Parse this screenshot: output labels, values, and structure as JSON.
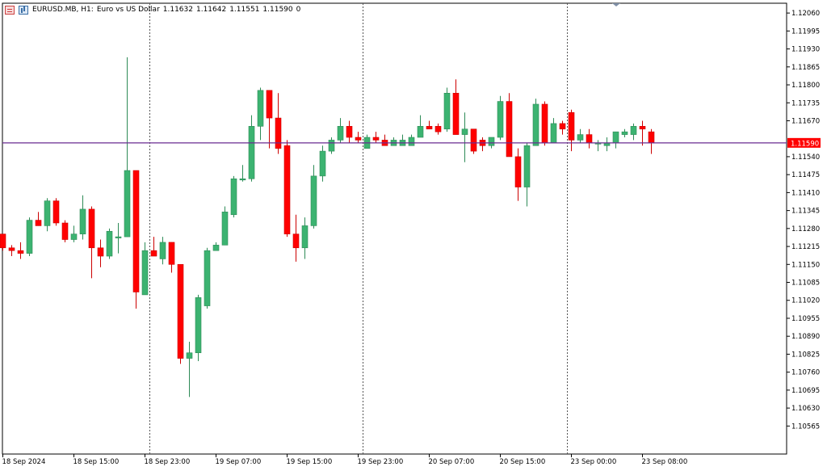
{
  "header": {
    "symbol": "EURUSD.MB, H1:",
    "description": "Euro vs US Dollar",
    "open": "1.11632",
    "high": "1.11642",
    "low": "1.11551",
    "close": "1.11590",
    "volume": "0"
  },
  "colors": {
    "background": "#ffffff",
    "bull": "#3cb371",
    "bear": "#ff0000",
    "wick_bull": "#2e8b57",
    "wick_bear": "#cc0000",
    "price_line": "#6a2c91",
    "price_label_bg": "#ff0000",
    "price_label_text": "#ffffff",
    "axis_text": "#000000"
  },
  "chart_data": {
    "type": "candlestick",
    "timeframe": "H1",
    "current_price": 1.1159,
    "current_price_label": "1.11590",
    "ylim": [
      1.10525,
      1.12075
    ],
    "y_ticks": [
      "1.12060",
      "1.11995",
      "1.11930",
      "1.11865",
      "1.11800",
      "1.11735",
      "1.11670",
      "1.11605",
      "1.11540",
      "1.11475",
      "1.11410",
      "1.11345",
      "1.11280",
      "1.11215",
      "1.11150",
      "1.11085",
      "1.11020",
      "1.10955",
      "1.10890",
      "1.10825",
      "1.10760",
      "1.10695",
      "1.10630",
      "1.10565"
    ],
    "x_ticks": [
      {
        "index": 0,
        "label": "18 Sep 2024"
      },
      {
        "index": 8,
        "label": "18 Sep 15:00"
      },
      {
        "index": 16,
        "label": "18 Sep 23:00"
      },
      {
        "index": 24,
        "label": "19 Sep 07:00"
      },
      {
        "index": 32,
        "label": "19 Sep 15:00"
      },
      {
        "index": 40,
        "label": "19 Sep 23:00"
      },
      {
        "index": 48,
        "label": "20 Sep 07:00"
      },
      {
        "index": 56,
        "label": "20 Sep 15:00"
      },
      {
        "index": 64,
        "label": "23 Sep 00:00"
      },
      {
        "index": 72,
        "label": "23 Sep 08:00"
      }
    ],
    "separators": [
      16.5,
      40.5,
      63.5
    ],
    "candles": [
      [
        1.1126,
        1.1126,
        1.112,
        1.1121
      ],
      [
        1.1121,
        1.1122,
        1.1118,
        1.112
      ],
      [
        1.112,
        1.1123,
        1.1117,
        1.1119
      ],
      [
        1.1119,
        1.1132,
        1.1118,
        1.1131
      ],
      [
        1.1131,
        1.1134,
        1.1129,
        1.1129
      ],
      [
        1.1129,
        1.1139,
        1.1127,
        1.1138
      ],
      [
        1.1138,
        1.1139,
        1.1129,
        1.113
      ],
      [
        1.113,
        1.1131,
        1.1123,
        1.1124
      ],
      [
        1.1124,
        1.1129,
        1.1123,
        1.1126
      ],
      [
        1.1126,
        1.114,
        1.1124,
        1.1135
      ],
      [
        1.1135,
        1.1136,
        1.111,
        1.1121
      ],
      [
        1.1121,
        1.1124,
        1.1114,
        1.1118
      ],
      [
        1.1118,
        1.1128,
        1.1117,
        1.1127
      ],
      [
        1.1125,
        1.113,
        1.1119,
        1.1125
      ],
      [
        1.1125,
        1.119,
        1.1125,
        1.1149
      ],
      [
        1.1149,
        1.1149,
        1.1099,
        1.1105
      ],
      [
        1.1104,
        1.1123,
        1.1104,
        1.112
      ],
      [
        1.112,
        1.1125,
        1.1118,
        1.1118
      ],
      [
        1.1117,
        1.1125,
        1.1115,
        1.1123
      ],
      [
        1.1123,
        1.1123,
        1.1112,
        1.1115
      ],
      [
        1.1115,
        1.1115,
        1.1079,
        1.1081
      ],
      [
        1.1081,
        1.1087,
        1.1067,
        1.1083
      ],
      [
        1.1083,
        1.1104,
        1.108,
        1.1103
      ],
      [
        1.11,
        1.1121,
        1.1099,
        1.112
      ],
      [
        1.112,
        1.1123,
        1.112,
        1.1122
      ],
      [
        1.1122,
        1.1136,
        1.1122,
        1.1134
      ],
      [
        1.1133,
        1.1147,
        1.1132,
        1.1146
      ],
      [
        1.1146,
        1.1151,
        1.1145,
        1.1146
      ],
      [
        1.1146,
        1.1169,
        1.1145,
        1.1165
      ],
      [
        1.1165,
        1.1179,
        1.116,
        1.1178
      ],
      [
        1.1178,
        1.1178,
        1.1157,
        1.1168
      ],
      [
        1.1168,
        1.1177,
        1.1155,
        1.1157
      ],
      [
        1.1158,
        1.116,
        1.1125,
        1.1126
      ],
      [
        1.1126,
        1.1133,
        1.1116,
        1.1121
      ],
      [
        1.1121,
        1.1132,
        1.1117,
        1.1129
      ],
      [
        1.1129,
        1.1151,
        1.1128,
        1.1147
      ],
      [
        1.1147,
        1.1158,
        1.1145,
        1.1156
      ],
      [
        1.1156,
        1.1161,
        1.1155,
        1.116
      ],
      [
        1.116,
        1.1168,
        1.1159,
        1.1165
      ],
      [
        1.1165,
        1.1167,
        1.1159,
        1.1161
      ],
      [
        1.1161,
        1.1163,
        1.1159,
        1.116
      ],
      [
        1.1157,
        1.1162,
        1.1157,
        1.1161
      ],
      [
        1.1161,
        1.1163,
        1.1159,
        1.116
      ],
      [
        1.116,
        1.1162,
        1.1158,
        1.1158
      ],
      [
        1.1158,
        1.1161,
        1.1158,
        1.116
      ],
      [
        1.1158,
        1.1162,
        1.1158,
        1.116
      ],
      [
        1.1158,
        1.1162,
        1.1158,
        1.1161
      ],
      [
        1.1161,
        1.1169,
        1.1161,
        1.1165
      ],
      [
        1.1165,
        1.1167,
        1.1164,
        1.1164
      ],
      [
        1.1165,
        1.1166,
        1.1162,
        1.1163
      ],
      [
        1.1164,
        1.1179,
        1.1163,
        1.1177
      ],
      [
        1.1177,
        1.1182,
        1.1162,
        1.1162
      ],
      [
        1.1162,
        1.117,
        1.1152,
        1.1164
      ],
      [
        1.1164,
        1.1164,
        1.1155,
        1.1156
      ],
      [
        1.116,
        1.1161,
        1.1156,
        1.1158
      ],
      [
        1.1158,
        1.1161,
        1.1157,
        1.1161
      ],
      [
        1.1161,
        1.1176,
        1.116,
        1.1174
      ],
      [
        1.1174,
        1.1177,
        1.1154,
        1.1154
      ],
      [
        1.1154,
        1.1157,
        1.1138,
        1.1143
      ],
      [
        1.1143,
        1.1159,
        1.1136,
        1.1158
      ],
      [
        1.1158,
        1.1175,
        1.1158,
        1.1173
      ],
      [
        1.1173,
        1.1174,
        1.1158,
        1.1159
      ],
      [
        1.1159,
        1.1168,
        1.1159,
        1.1166
      ],
      [
        1.1166,
        1.1167,
        1.1162,
        1.1164
      ],
      [
        1.117,
        1.1171,
        1.1156,
        1.116
      ],
      [
        1.116,
        1.1164,
        1.1159,
        1.1162
      ],
      [
        1.1162,
        1.1164,
        1.1157,
        1.1159
      ],
      [
        1.1159,
        1.116,
        1.1156,
        1.1159
      ],
      [
        1.1158,
        1.1161,
        1.1156,
        1.1159
      ],
      [
        1.1159,
        1.1163,
        1.1157,
        1.1163
      ],
      [
        1.1162,
        1.1164,
        1.1161,
        1.1163
      ],
      [
        1.1162,
        1.1166,
        1.116,
        1.1165
      ],
      [
        1.1165,
        1.1167,
        1.1158,
        1.1164
      ],
      [
        1.1163,
        1.1164,
        1.1155,
        1.1159
      ]
    ]
  }
}
